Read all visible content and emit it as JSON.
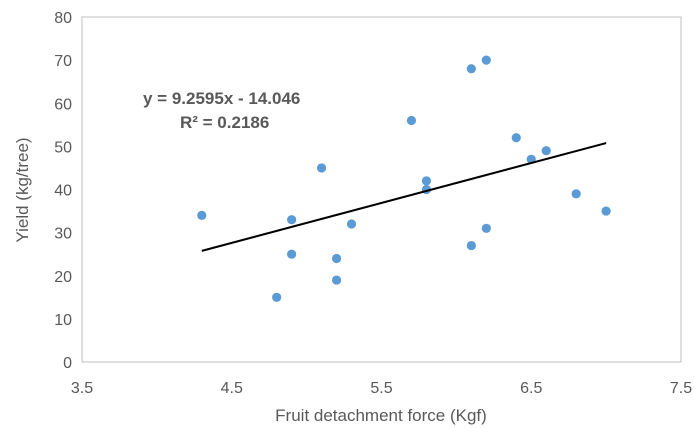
{
  "chart_data": {
    "type": "scatter",
    "xlabel": "Fruit detachment force (Kgf)",
    "ylabel": "Yield (kg/tree)",
    "xlim": [
      3.5,
      7.5
    ],
    "ylim": [
      0,
      80
    ],
    "x_ticks": [
      "3.5",
      "4.5",
      "5.5",
      "6.5",
      "7.5"
    ],
    "y_ticks": [
      "0",
      "10",
      "20",
      "30",
      "40",
      "50",
      "60",
      "70",
      "80"
    ],
    "grid": false,
    "marker_color": "#5b9bd5",
    "trendline_color": "#000000",
    "series": [
      {
        "points": [
          {
            "x": 4.3,
            "y": 34
          },
          {
            "x": 4.8,
            "y": 15
          },
          {
            "x": 4.9,
            "y": 33
          },
          {
            "x": 4.9,
            "y": 25
          },
          {
            "x": 5.1,
            "y": 45
          },
          {
            "x": 5.2,
            "y": 24
          },
          {
            "x": 5.2,
            "y": 19
          },
          {
            "x": 5.3,
            "y": 32
          },
          {
            "x": 5.7,
            "y": 56
          },
          {
            "x": 5.8,
            "y": 42
          },
          {
            "x": 5.8,
            "y": 40
          },
          {
            "x": 6.1,
            "y": 68
          },
          {
            "x": 6.1,
            "y": 27
          },
          {
            "x": 6.2,
            "y": 70
          },
          {
            "x": 6.2,
            "y": 31
          },
          {
            "x": 6.4,
            "y": 52
          },
          {
            "x": 6.5,
            "y": 47
          },
          {
            "x": 6.6,
            "y": 49
          },
          {
            "x": 6.8,
            "y": 39
          },
          {
            "x": 7.0,
            "y": 35
          }
        ]
      }
    ],
    "trendline": {
      "slope": 9.2595,
      "intercept": -14.046,
      "x_range": [
        4.3,
        7.0
      ],
      "equation": "y = 9.2595x - 14.046",
      "r_squared": "R² = 0.2186"
    }
  }
}
